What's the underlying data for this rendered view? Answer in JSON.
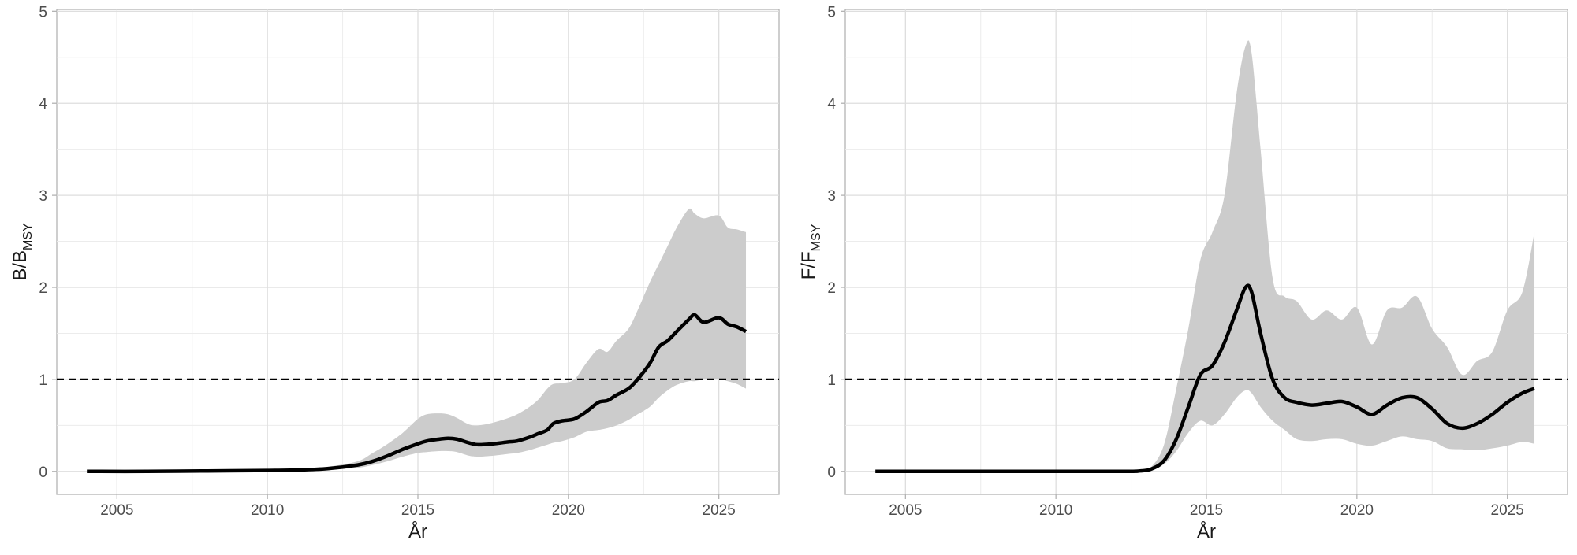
{
  "chart_data": [
    {
      "type": "line",
      "xlabel": "År",
      "ylabel": {
        "main": "B/B",
        "sub": "MSY"
      },
      "xlim": [
        2003,
        2027
      ],
      "ylim": [
        -0.25,
        5.02
      ],
      "x_ticks": [
        "2005",
        "2010",
        "2015",
        "2020",
        "2025"
      ],
      "y_ticks": [
        "0",
        "1",
        "2",
        "3",
        "4",
        "5"
      ],
      "grid": true,
      "reference_line": {
        "y": 1,
        "style": "dashed",
        "color": "#000000"
      },
      "band_color": "#cccccc",
      "line_color": "#000000",
      "series": [
        {
          "x": [
            2004,
            2006,
            2008,
            2010,
            2011,
            2012,
            2013,
            2013.5,
            2014,
            2014.5,
            2015,
            2015.3,
            2015.7,
            2016,
            2016.3,
            2016.7,
            2017,
            2017.5,
            2018,
            2018.3,
            2018.7,
            2019,
            2019.3,
            2019.5,
            2019.8,
            2020.2,
            2020.6,
            2021,
            2021.3,
            2021.6,
            2022,
            2022.3,
            2022.7,
            2023,
            2023.3,
            2023.6,
            2024,
            2024.2,
            2024.5,
            2025,
            2025.3,
            2025.6,
            2025.9
          ],
          "mean": [
            0.0,
            0.0,
            0.005,
            0.01,
            0.015,
            0.03,
            0.07,
            0.11,
            0.17,
            0.24,
            0.3,
            0.33,
            0.35,
            0.36,
            0.35,
            0.31,
            0.29,
            0.3,
            0.32,
            0.33,
            0.37,
            0.41,
            0.45,
            0.52,
            0.55,
            0.57,
            0.65,
            0.75,
            0.77,
            0.83,
            0.9,
            1.0,
            1.17,
            1.35,
            1.42,
            1.52,
            1.65,
            1.7,
            1.62,
            1.67,
            1.6,
            1.57,
            1.52
          ],
          "lower": [
            0.0,
            0.0,
            0.0,
            0.005,
            0.01,
            0.02,
            0.04,
            0.07,
            0.11,
            0.16,
            0.2,
            0.21,
            0.22,
            0.22,
            0.21,
            0.17,
            0.16,
            0.17,
            0.19,
            0.2,
            0.23,
            0.26,
            0.29,
            0.31,
            0.33,
            0.37,
            0.43,
            0.45,
            0.47,
            0.5,
            0.56,
            0.62,
            0.7,
            0.8,
            0.88,
            0.94,
            0.98,
            0.98,
            1.0,
            1.0,
            0.98,
            0.95,
            0.9
          ],
          "upper": [
            0.0,
            0.0,
            0.01,
            0.02,
            0.03,
            0.05,
            0.11,
            0.2,
            0.3,
            0.42,
            0.57,
            0.62,
            0.63,
            0.62,
            0.58,
            0.51,
            0.5,
            0.53,
            0.58,
            0.62,
            0.7,
            0.78,
            0.9,
            0.95,
            0.96,
            1.0,
            1.18,
            1.33,
            1.3,
            1.42,
            1.55,
            1.75,
            2.05,
            2.25,
            2.45,
            2.65,
            2.85,
            2.8,
            2.75,
            2.78,
            2.65,
            2.63,
            2.6
          ]
        }
      ]
    },
    {
      "type": "line",
      "xlabel": "År",
      "ylabel": {
        "main": "F/F",
        "sub": "MSY"
      },
      "xlim": [
        2003,
        2027
      ],
      "ylim": [
        -0.25,
        5.02
      ],
      "x_ticks": [
        "2005",
        "2010",
        "2015",
        "2020",
        "2025"
      ],
      "y_ticks": [
        "0",
        "1",
        "2",
        "3",
        "4",
        "5"
      ],
      "grid": true,
      "reference_line": {
        "y": 1,
        "style": "dashed",
        "color": "#000000"
      },
      "band_color": "#cccccc",
      "line_color": "#000000",
      "series": [
        {
          "x": [
            2004,
            2008,
            2012,
            2012.8,
            2013.2,
            2013.6,
            2014,
            2014.4,
            2014.8,
            2015.2,
            2015.6,
            2016,
            2016.3,
            2016.5,
            2016.8,
            2017.2,
            2017.6,
            2018,
            2018.5,
            2019,
            2019.5,
            2020,
            2020.5,
            2021,
            2021.5,
            2022,
            2022.5,
            2023,
            2023.5,
            2024,
            2024.5,
            2025,
            2025.5,
            2025.9
          ],
          "mean": [
            0.0,
            0.0,
            0.0,
            0.005,
            0.03,
            0.12,
            0.35,
            0.7,
            1.05,
            1.15,
            1.4,
            1.75,
            2.0,
            1.95,
            1.5,
            1.0,
            0.8,
            0.75,
            0.72,
            0.74,
            0.76,
            0.7,
            0.62,
            0.72,
            0.8,
            0.8,
            0.68,
            0.52,
            0.47,
            0.52,
            0.62,
            0.75,
            0.85,
            0.9
          ],
          "lower": [
            0.0,
            0.0,
            0.0,
            0.0,
            0.02,
            0.08,
            0.22,
            0.42,
            0.55,
            0.5,
            0.62,
            0.8,
            0.88,
            0.85,
            0.7,
            0.55,
            0.45,
            0.35,
            0.33,
            0.35,
            0.35,
            0.3,
            0.28,
            0.33,
            0.38,
            0.35,
            0.33,
            0.25,
            0.24,
            0.23,
            0.25,
            0.28,
            0.32,
            0.3
          ],
          "upper": [
            0.0,
            0.0,
            0.0,
            0.01,
            0.06,
            0.3,
            0.9,
            1.55,
            2.3,
            2.6,
            3.0,
            4.1,
            4.62,
            4.55,
            3.5,
            2.1,
            1.9,
            1.85,
            1.65,
            1.75,
            1.65,
            1.78,
            1.38,
            1.75,
            1.78,
            1.9,
            1.55,
            1.35,
            1.05,
            1.2,
            1.3,
            1.75,
            1.95,
            2.6
          ]
        }
      ]
    }
  ]
}
